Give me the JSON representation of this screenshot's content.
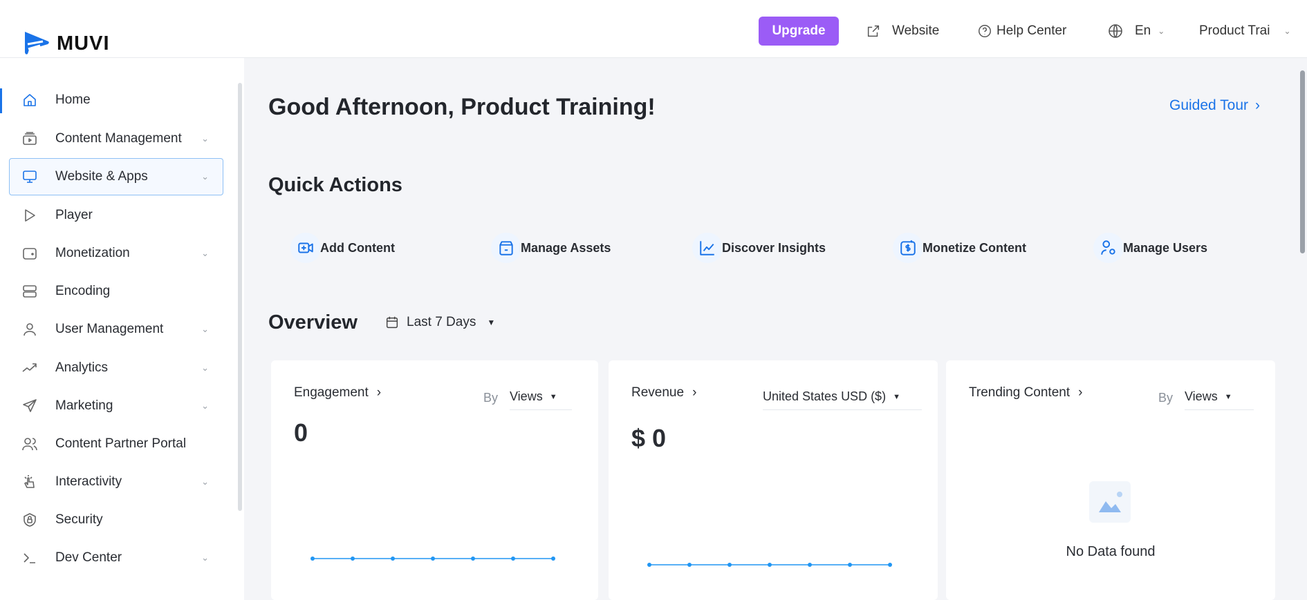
{
  "brand": {
    "name": "MUVI",
    "color": "#1a73e8"
  },
  "header": {
    "upgrade": "Upgrade",
    "website": "Website",
    "help": "Help Center",
    "language": "En",
    "account": "Product Trai"
  },
  "sidebar": {
    "items": [
      {
        "label": "Home",
        "icon": "home-icon",
        "chevron": false
      },
      {
        "label": "Content Management",
        "icon": "content-icon",
        "chevron": true
      },
      {
        "label": "Website & Apps",
        "icon": "monitor-icon",
        "chevron": true
      },
      {
        "label": "Player",
        "icon": "play-icon",
        "chevron": false
      },
      {
        "label": "Monetization",
        "icon": "wallet-icon",
        "chevron": true
      },
      {
        "label": "Encoding",
        "icon": "server-icon",
        "chevron": false
      },
      {
        "label": "User Management",
        "icon": "user-icon",
        "chevron": true
      },
      {
        "label": "Analytics",
        "icon": "trend-icon",
        "chevron": true
      },
      {
        "label": "Marketing",
        "icon": "send-icon",
        "chevron": true
      },
      {
        "label": "Content Partner Portal",
        "icon": "users-icon",
        "chevron": false
      },
      {
        "label": "Interactivity",
        "icon": "interactivity-icon",
        "chevron": true
      },
      {
        "label": "Security",
        "icon": "shield-icon",
        "chevron": false
      },
      {
        "label": "Dev Center",
        "icon": "terminal-icon",
        "chevron": true
      }
    ]
  },
  "main": {
    "greeting": "Good Afternoon, Product Training!",
    "guided_tour": "Guided Tour",
    "quick_actions_title": "Quick Actions",
    "quick_actions": [
      {
        "label": "Add Content",
        "icon": "add-video-icon"
      },
      {
        "label": "Manage Assets",
        "icon": "assets-icon"
      },
      {
        "label": "Discover Insights",
        "icon": "chart-icon"
      },
      {
        "label": "Monetize Content",
        "icon": "dollar-icon"
      },
      {
        "label": "Manage Users",
        "icon": "user-settings-icon"
      }
    ],
    "overview_title": "Overview",
    "range": "Last 7 Days",
    "cards": {
      "engagement": {
        "title": "Engagement",
        "by": "By",
        "metric": "Views",
        "value": "0"
      },
      "revenue": {
        "title": "Revenue",
        "currency": "United States USD ($)",
        "value": "$ 0"
      },
      "trending": {
        "title": "Trending Content",
        "by": "By",
        "metric": "Views",
        "empty": "No Data found"
      }
    }
  },
  "chart_data": [
    {
      "type": "line",
      "name": "engagement",
      "values": [
        0,
        0,
        0,
        0,
        0,
        0,
        0
      ],
      "color": "#2196f3"
    },
    {
      "type": "line",
      "name": "revenue",
      "values": [
        0,
        0,
        0,
        0,
        0,
        0,
        0
      ],
      "color": "#2196f3"
    }
  ]
}
